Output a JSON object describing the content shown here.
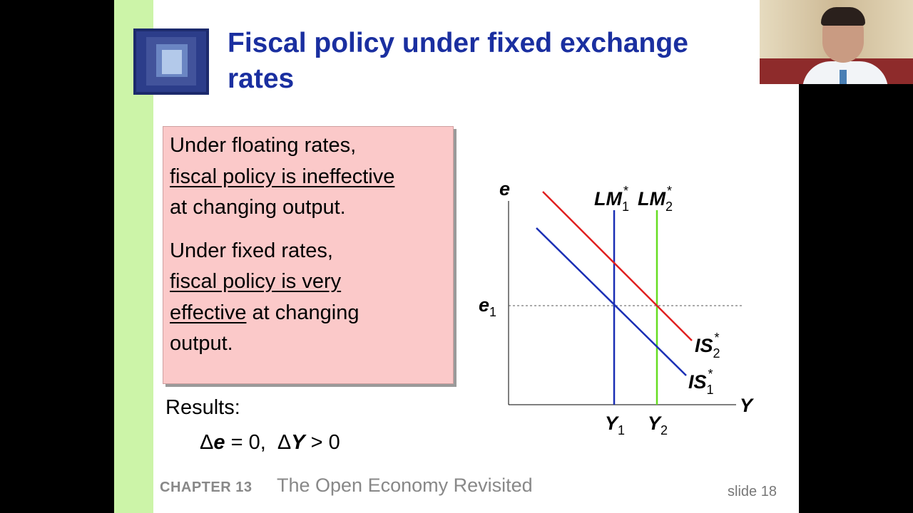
{
  "slide": {
    "title": "Fiscal policy under fixed exchange rates",
    "box": {
      "p1_plain": "Under floating rates,",
      "p1_underlined": "fiscal policy is ineffective",
      "p1_rest": "at changing output.",
      "p2_plain": "Under fixed rates,",
      "p2_underlined_1": "fiscal policy is very",
      "p2_underlined_2": "effective",
      "p2_rest_1": " at changing",
      "p2_rest_2": "output."
    },
    "results": {
      "label": "Results:",
      "delta": "Δ",
      "e_var": "e",
      "e_rest": " = 0,  ",
      "y_var": "Y",
      "y_rest": " > 0"
    },
    "footer": {
      "chapter": "CHAPTER 13",
      "chapter_title": "The Open Economy Revisited",
      "slide_number": "slide 18"
    }
  },
  "chart_data": {
    "type": "line",
    "y_axis_label": "e",
    "x_axis_label": "Y",
    "y_tick_main": "e",
    "y_tick_sub": "1",
    "x_ticks": [
      {
        "main": "Y",
        "sub": "1"
      },
      {
        "main": "Y",
        "sub": "2"
      }
    ],
    "curves": [
      {
        "main": "LM",
        "sub": "1",
        "sup": "*",
        "color": "#1a2fb5"
      },
      {
        "main": "LM",
        "sub": "2",
        "sup": "*",
        "color": "#66dd22"
      },
      {
        "main": "IS",
        "sub": "1",
        "sup": "*",
        "color": "#1a2fb5"
      },
      {
        "main": "IS",
        "sub": "2",
        "sup": "*",
        "color": "#e02020"
      }
    ],
    "grid": false
  },
  "colors": {
    "title": "#1a2fa0",
    "green_bar": "#ccf4a8",
    "text_box": "#fbc9c9"
  }
}
